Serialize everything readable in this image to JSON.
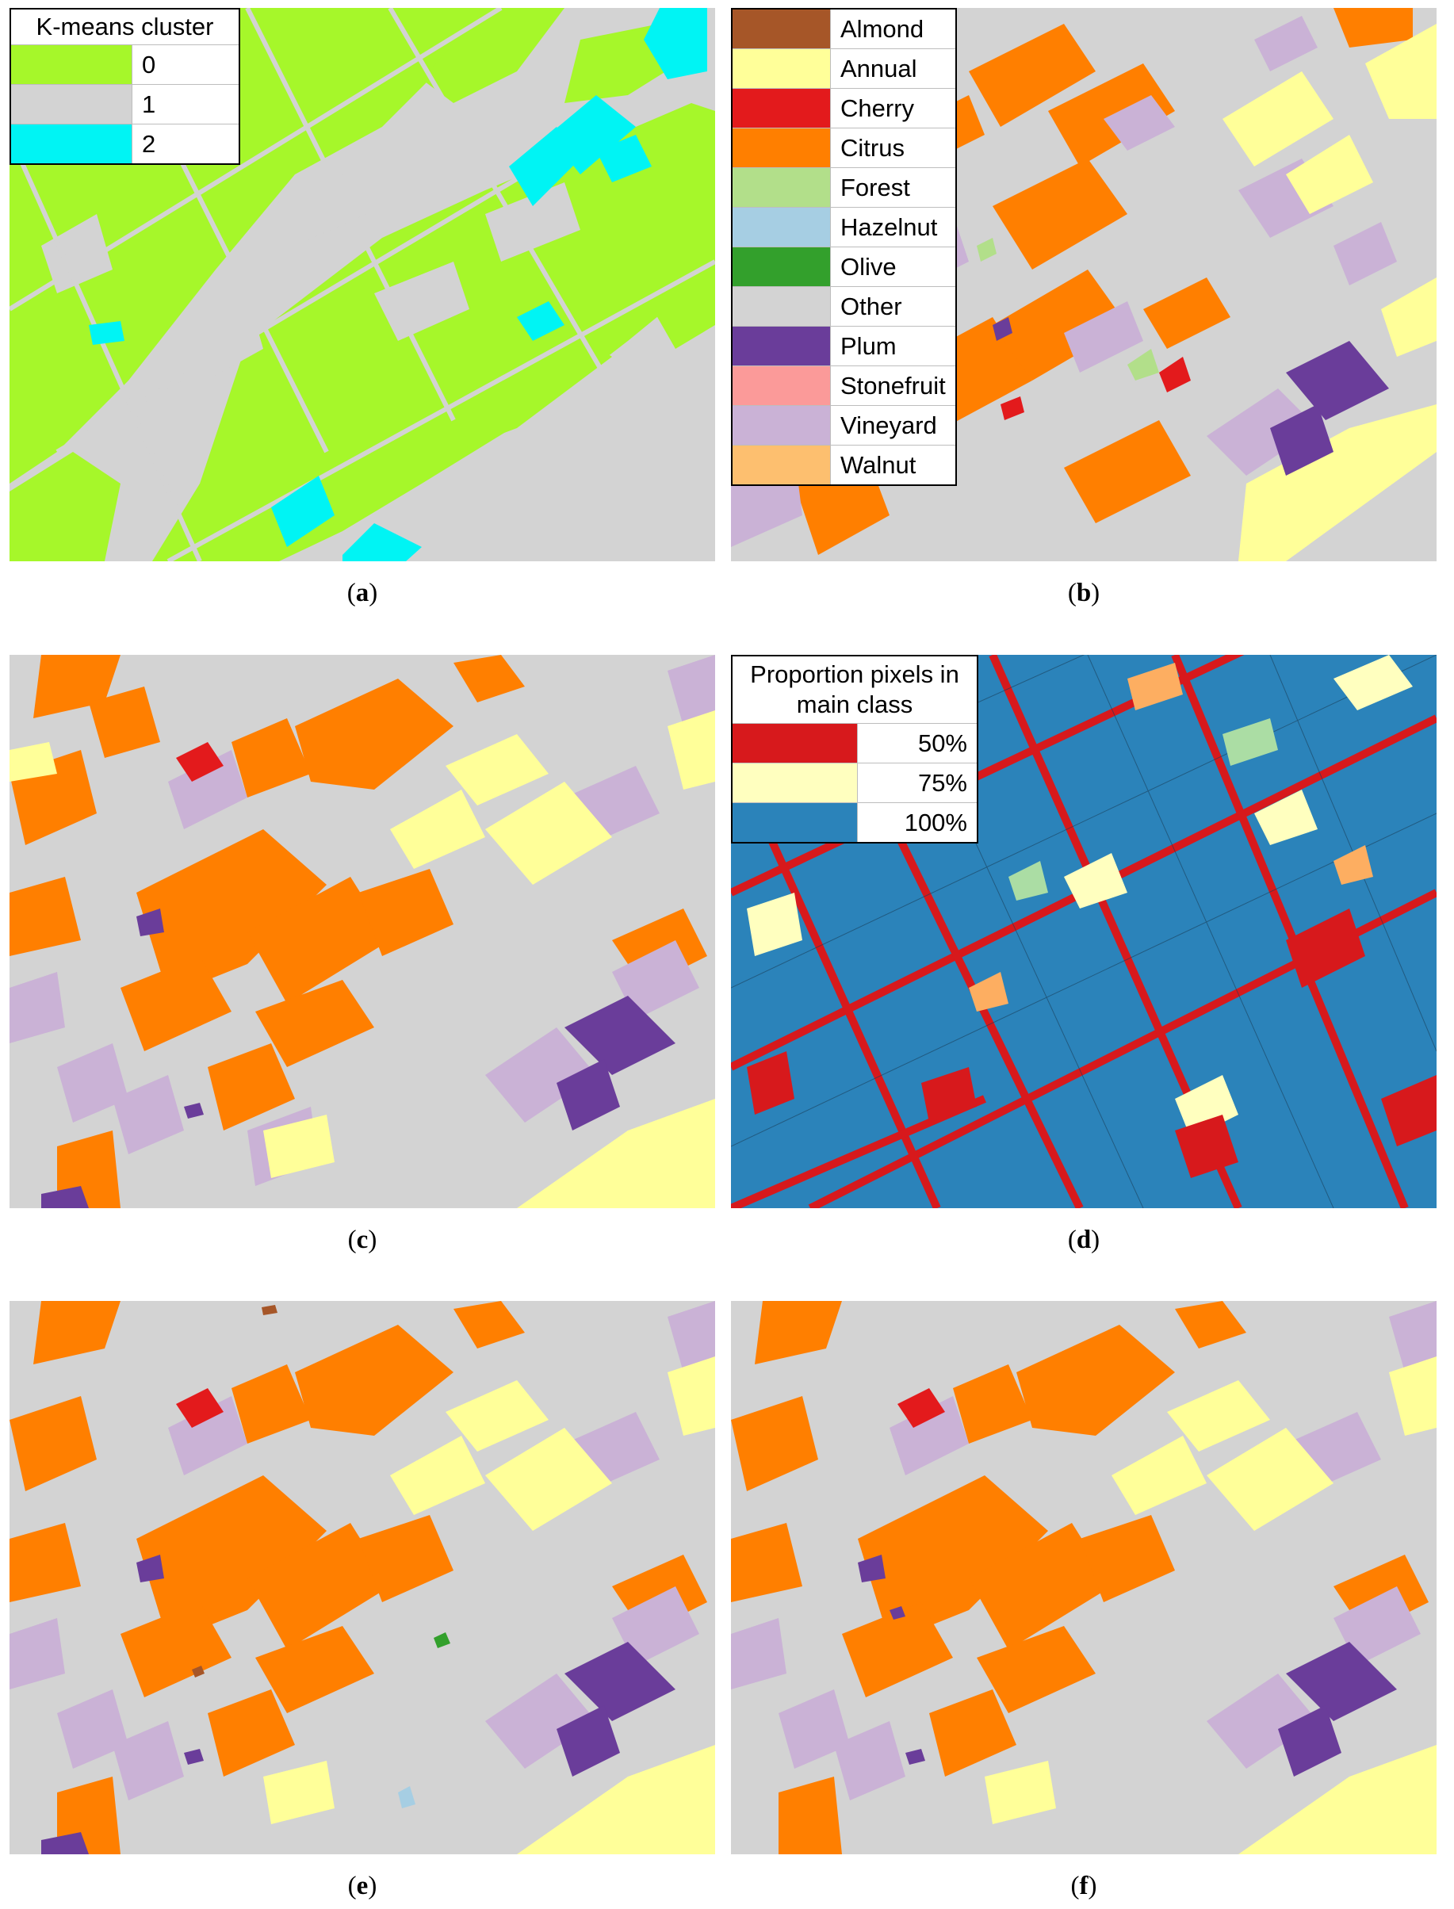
{
  "colors": {
    "background": "#d3d3d3",
    "kmeans": [
      "#a6f72a",
      "#d3d3d3",
      "#00f4f4"
    ],
    "almond": "#a65628",
    "annual": "#ffff99",
    "cherry": "#e31a1c",
    "citrus": "#ff7f00",
    "forest": "#b2df8a",
    "hazelnut": "#a6cee3",
    "olive": "#33a02c",
    "other": "#d3d3d3",
    "plum": "#6a3d9a",
    "stonefruit": "#fb9a99",
    "vineyard": "#cab2d6",
    "walnut": "#fdbf6f",
    "prop50": "#d7191c",
    "prop75": "#ffffbf",
    "prop100": "#2b83ba"
  },
  "panels": {
    "a": {
      "caption_letter": "a"
    },
    "b": {
      "caption_letter": "b"
    },
    "c": {
      "caption_letter": "c"
    },
    "d": {
      "caption_letter": "d"
    },
    "e": {
      "caption_letter": "e"
    },
    "f": {
      "caption_letter": "f"
    }
  },
  "legend_kmeans": {
    "title": "K-means cluster",
    "items": [
      {
        "label": "0",
        "color": "#a6f72a"
      },
      {
        "label": "1",
        "color": "#d3d3d3"
      },
      {
        "label": "2",
        "color": "#00f4f4"
      }
    ]
  },
  "legend_crop": {
    "items": [
      {
        "label": "Almond",
        "color": "#a65628"
      },
      {
        "label": "Annual",
        "color": "#ffff99"
      },
      {
        "label": "Cherry",
        "color": "#e31a1c"
      },
      {
        "label": "Citrus",
        "color": "#ff7f00"
      },
      {
        "label": "Forest",
        "color": "#b2df8a"
      },
      {
        "label": "Hazelnut",
        "color": "#a6cee3"
      },
      {
        "label": "Olive",
        "color": "#33a02c"
      },
      {
        "label": "Other",
        "color": "#d3d3d3"
      },
      {
        "label": "Plum",
        "color": "#6a3d9a"
      },
      {
        "label": "Stonefruit",
        "color": "#fb9a99"
      },
      {
        "label": "Vineyard",
        "color": "#cab2d6"
      },
      {
        "label": "Walnut",
        "color": "#fdbf6f"
      }
    ]
  },
  "legend_prop": {
    "title_line1": "Proportion pixels in",
    "title_line2": "main class",
    "items": [
      {
        "label": "50%",
        "color": "#d7191c"
      },
      {
        "label": "75%",
        "color": "#ffffbf"
      },
      {
        "label": "100%",
        "color": "#2b83ba"
      }
    ]
  }
}
